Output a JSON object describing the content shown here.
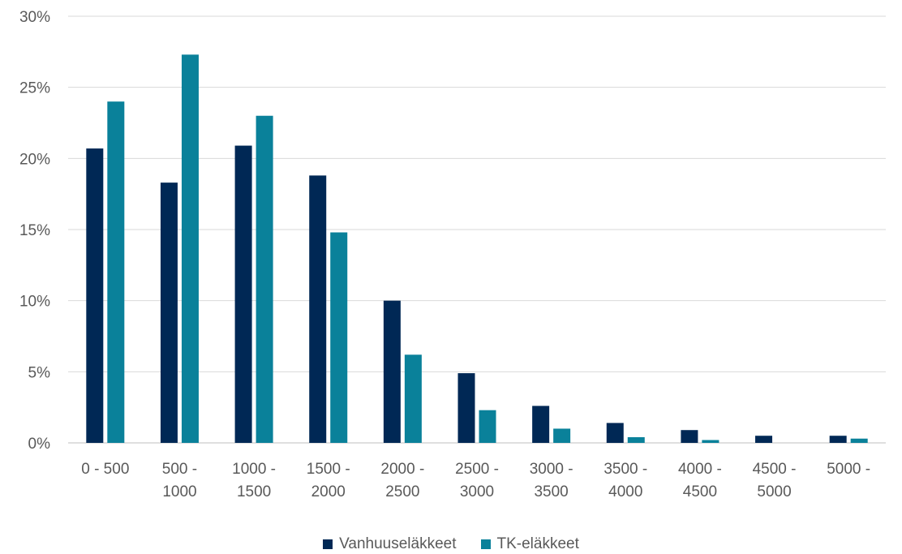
{
  "chart_data": {
    "type": "bar",
    "categories": [
      [
        "0 - 500"
      ],
      [
        "500 -",
        "1000"
      ],
      [
        "1000 -",
        "1500"
      ],
      [
        "1500 -",
        "2000"
      ],
      [
        "2000 -",
        "2500"
      ],
      [
        "2500 -",
        "3000"
      ],
      [
        "3000 -",
        "3500"
      ],
      [
        "3500 -",
        "4000"
      ],
      [
        "4000 -",
        "4500"
      ],
      [
        "4500 -",
        "5000"
      ],
      [
        "5000 -"
      ]
    ],
    "series": [
      {
        "name": "Vanhuuseläkkeet",
        "color": "#002855",
        "values": [
          20.7,
          18.3,
          20.9,
          18.8,
          10.0,
          4.9,
          2.6,
          1.4,
          0.9,
          0.5,
          0.5
        ]
      },
      {
        "name": "TK-eläkkeet",
        "color": "#0A819A",
        "values": [
          24.0,
          27.3,
          23.0,
          14.8,
          6.2,
          2.3,
          1.0,
          0.4,
          0.2,
          0.0,
          0.3
        ]
      }
    ],
    "yticks": [
      "0%",
      "5%",
      "10%",
      "15%",
      "20%",
      "25%",
      "30%"
    ],
    "ylim": [
      0,
      30
    ],
    "grid": true,
    "legend_position": "bottom"
  }
}
